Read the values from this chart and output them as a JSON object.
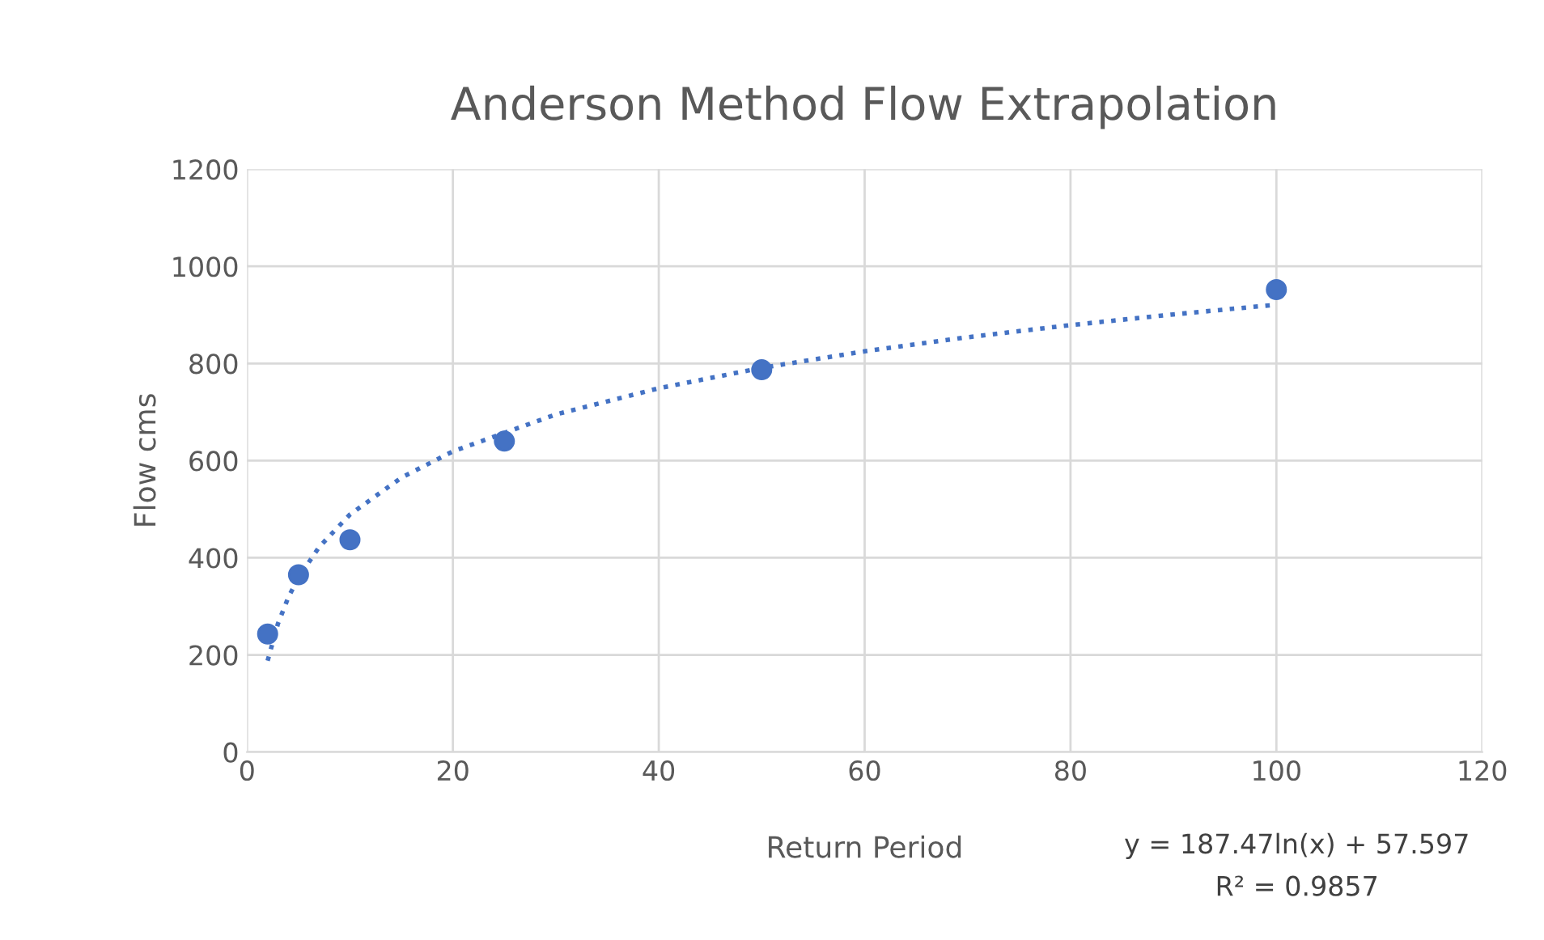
{
  "chart_data": {
    "type": "scatter",
    "title": "Anderson Method Flow Extrapolation",
    "xlabel": "Return Period",
    "ylabel": "Flow cms",
    "series": [
      {
        "color": "#4472c4",
        "x": [
          2,
          5,
          10,
          25,
          50,
          100
        ],
        "values": [
          243,
          365,
          437,
          640,
          787,
          952
        ],
        "marker": "circle"
      },
      {
        "type": "line",
        "color": "#4472c4",
        "line_style": "dotted",
        "marker": "none",
        "x": [
          2,
          3,
          4,
          5,
          7,
          10,
          15,
          20,
          30,
          40,
          50,
          60,
          70,
          80,
          90,
          100
        ],
        "values": [
          188,
          264,
          318,
          359,
          422,
          489,
          565,
          619,
          695,
          749,
          791,
          825,
          854,
          879,
          901,
          921
        ]
      }
    ],
    "annotations": [
      "y = 187.47ln(x) + 57.597",
      "R² = 0.9857"
    ],
    "xlim": [
      0,
      120
    ],
    "xticks": [
      0,
      20,
      40,
      60,
      80,
      100,
      120
    ],
    "ylim": [
      0,
      1200
    ],
    "yticks": [
      0,
      200,
      400,
      600,
      800,
      1000,
      1200
    ],
    "grid": true
  }
}
